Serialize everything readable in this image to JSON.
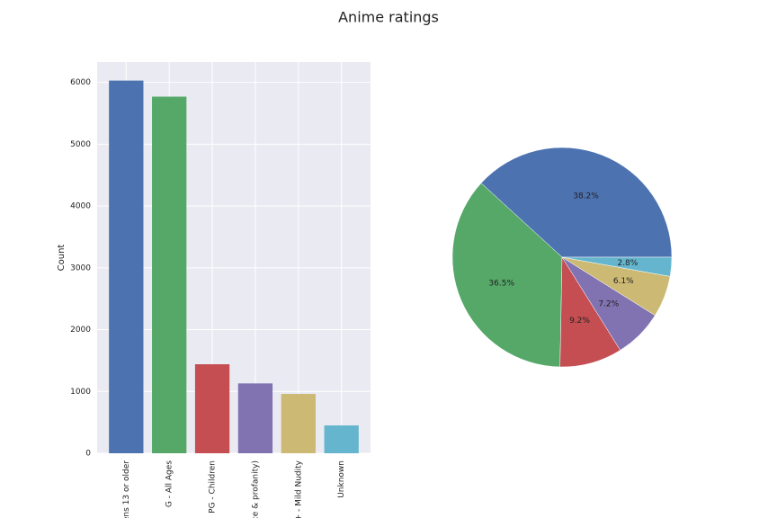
{
  "title": "Anime ratings",
  "chart_data": [
    {
      "type": "bar",
      "ylabel": "Count",
      "categories": [
        "ens 13 or older",
        "G - All Ages",
        "PG - Children",
        "ce & profanity)",
        "+ - Mild Nudity",
        "Unknown"
      ],
      "values": [
        6030,
        5770,
        1440,
        1130,
        960,
        450
      ],
      "colors": [
        "#4c72b0",
        "#55a868",
        "#c44e52",
        "#8172b2",
        "#ccb974",
        "#64b5cd"
      ],
      "ylim": [
        0,
        6330
      ],
      "yticks": [
        0,
        1000,
        2000,
        3000,
        4000,
        5000,
        6000
      ],
      "grid": true
    },
    {
      "type": "pie",
      "values": [
        38.2,
        36.5,
        9.2,
        7.2,
        6.1,
        2.8
      ],
      "value_labels": [
        "38.2%",
        "36.5%",
        "9.2%",
        "7.2%",
        "6.1%",
        "2.8%"
      ],
      "colors": [
        "#4c72b0",
        "#55a868",
        "#c44e52",
        "#8172b2",
        "#ccb974",
        "#64b5cd"
      ]
    }
  ]
}
